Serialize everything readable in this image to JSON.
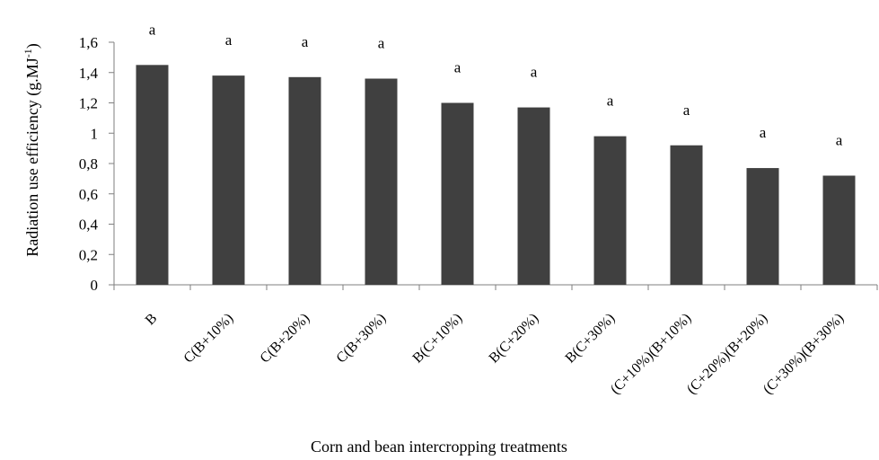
{
  "chart_data": {
    "type": "bar",
    "categories": [
      "B",
      "C(B+10%)",
      "C(B+20%)",
      "C(B+30%)",
      "B(C+10%)",
      "B(C+20%)",
      "B(C+30%)",
      "(C+10%)(B+10%)",
      "(C+20%)(B+20%)",
      "(C+30%)(B+30%)"
    ],
    "values": [
      1.45,
      1.38,
      1.37,
      1.36,
      1.2,
      1.17,
      0.98,
      0.92,
      0.77,
      0.72
    ],
    "significance_letters": [
      "a",
      "a",
      "a",
      "a",
      "a",
      "a",
      "a",
      "a",
      "a",
      "a"
    ],
    "xlabel": "Corn and bean intercropping treatments",
    "ylabel_main": "Radiation use efficiency (g.MJ",
    "ylabel_sup": "-1",
    "ylabel_end": ")",
    "ylim": [
      0,
      1.6
    ],
    "yticks": [
      0,
      0.2,
      0.4,
      0.6,
      0.8,
      1,
      1.2,
      1.4,
      1.6
    ],
    "ytick_labels": [
      "0",
      "0,2",
      "0,4",
      "0,6",
      "0,8",
      "1",
      "1,2",
      "1,4",
      "1,6"
    ],
    "bar_color": "#404040",
    "grid": false,
    "legend": "none"
  }
}
